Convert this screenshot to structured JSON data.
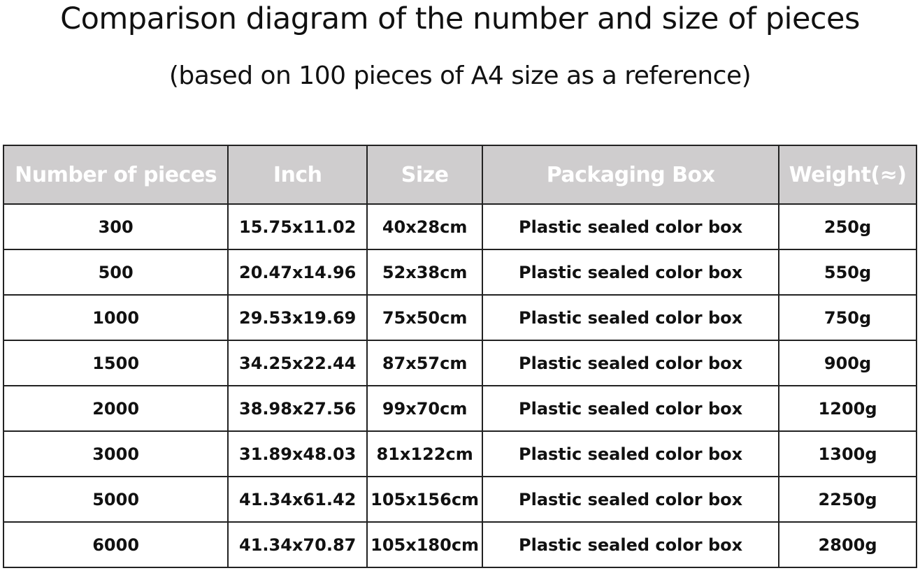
{
  "title": "Comparison diagram of the number and size of pieces",
  "subtitle": "(based on 100 pieces of A4 size as a reference)",
  "table": {
    "headers": [
      "Number of pieces",
      "Inch",
      "Size",
      "Packaging Box",
      "Weight(≈)"
    ],
    "rows": [
      [
        "300",
        "15.75x11.02",
        "40x28cm",
        "Plastic sealed color box",
        "250g"
      ],
      [
        "500",
        "20.47x14.96",
        "52x38cm",
        "Plastic sealed color box",
        "550g"
      ],
      [
        "1000",
        "29.53x19.69",
        "75x50cm",
        "Plastic sealed color box",
        "750g"
      ],
      [
        "1500",
        "34.25x22.44",
        "87x57cm",
        "Plastic sealed color box",
        "900g"
      ],
      [
        "2000",
        "38.98x27.56",
        "99x70cm",
        "Plastic sealed color box",
        "1200g"
      ],
      [
        "3000",
        "31.89x48.03",
        "81x122cm",
        "Plastic sealed color box",
        "1300g"
      ],
      [
        "5000",
        "41.34x61.42",
        "105x156cm",
        "Plastic sealed color box",
        "2250g"
      ],
      [
        "6000",
        "41.34x70.87",
        "105x180cm",
        "Plastic sealed color box",
        "2800g"
      ]
    ]
  },
  "colors": {
    "header_bg": "#cfcdce",
    "header_text": "#ffffff",
    "border": "#222222"
  }
}
